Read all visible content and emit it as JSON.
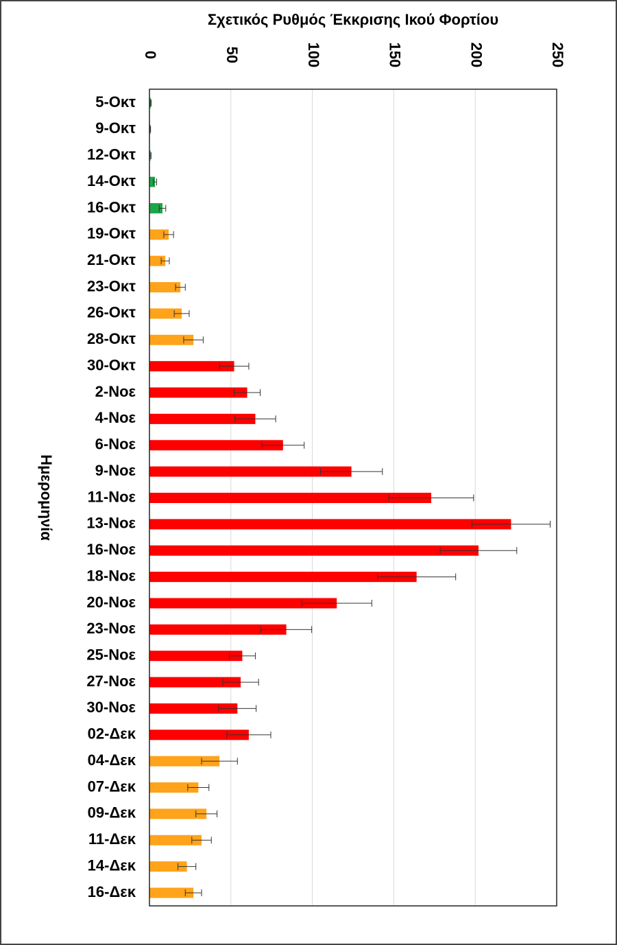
{
  "chart_data": {
    "type": "bar",
    "orientation": "horizontal",
    "title": "Σχετικός Ρυθμός Έκκρισης Ικού Φορτίου",
    "y_label": "Ημερομηνία",
    "categories": [
      "5-Οκτ",
      "9-Οκτ",
      "12-Οκτ",
      "14-Οκτ",
      "16-Οκτ",
      "19-Οκτ",
      "21-Οκτ",
      "23-Οκτ",
      "26-Οκτ",
      "28-Οκτ",
      "30-Οκτ",
      "2-Νοε",
      "4-Νοε",
      "6-Νοε",
      "9-Νοε",
      "11-Νοε",
      "13-Νοε",
      "16-Νοε",
      "18-Νοε",
      "20-Νοε",
      "23-Νοε",
      "25-Νοε",
      "27-Νοε",
      "30-Νοε",
      "02-Δεκ",
      "04-Δεκ",
      "07-Δεκ",
      "09-Δεκ",
      "11-Δεκ",
      "14-Δεκ",
      "16-Δεκ"
    ],
    "values": [
      0.8,
      0.5,
      0.7,
      3.4,
      8,
      11.8,
      9.7,
      19,
      19.8,
      27,
      52,
      60,
      65,
      82,
      124,
      173,
      222,
      202,
      164,
      115,
      84,
      57,
      56,
      54,
      61,
      43,
      30,
      35,
      32,
      23,
      27
    ],
    "errors": [
      0.3,
      0.2,
      0.3,
      1,
      2,
      3,
      2.5,
      3,
      4.6,
      6,
      9,
      8,
      12.5,
      13,
      19,
      26,
      24,
      23.5,
      24,
      21.5,
      15.6,
      8,
      11,
      11.5,
      13.5,
      11,
      6.5,
      6.5,
      6,
      5.5,
      5
    ],
    "colors": [
      "#1ea64b",
      "#1ea64b",
      "#1ea64b",
      "#1ea64b",
      "#1ea64b",
      "#ffa31a",
      "#ffa31a",
      "#ffa31a",
      "#ffa31a",
      "#ffa31a",
      "#ff0000",
      "#ff0000",
      "#ff0000",
      "#ff0000",
      "#ff0000",
      "#ff0000",
      "#ff0000",
      "#ff0000",
      "#ff0000",
      "#ff0000",
      "#ff0000",
      "#ff0000",
      "#ff0000",
      "#ff0000",
      "#ff0000",
      "#ffa31a",
      "#ffa31a",
      "#ffa31a",
      "#ffa31a",
      "#ffa31a",
      "#ffa31a"
    ],
    "xlim": [
      0,
      250
    ],
    "xticks": [
      0,
      50,
      100,
      150,
      200,
      250
    ],
    "grid": true
  }
}
